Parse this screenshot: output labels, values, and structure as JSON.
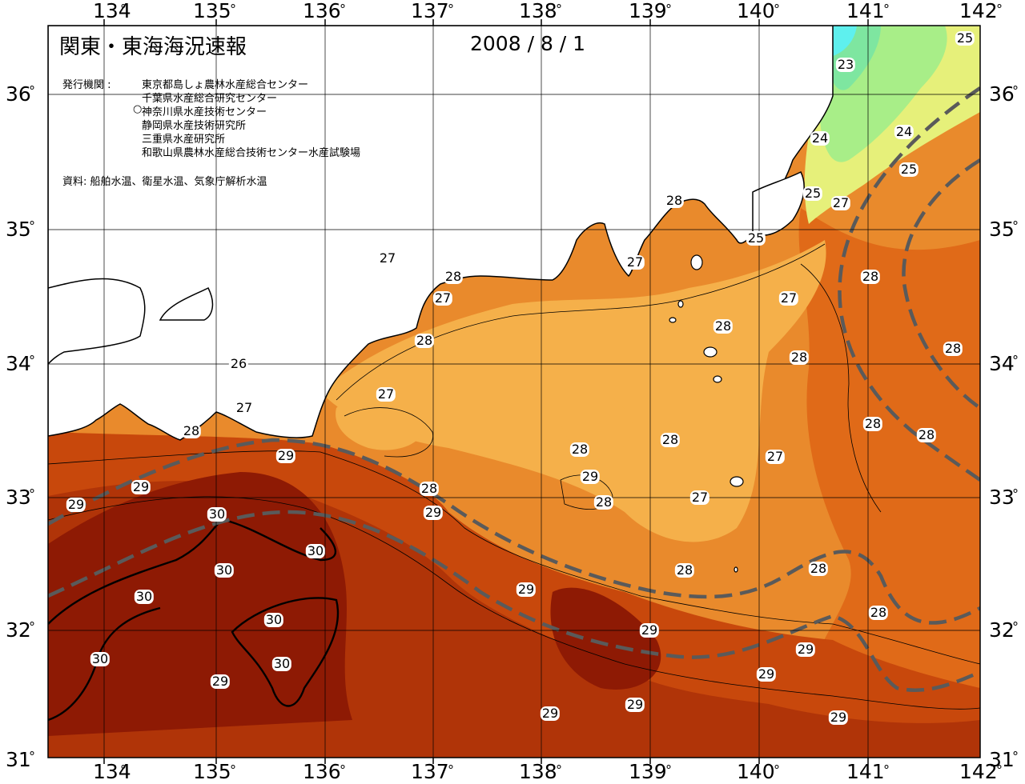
{
  "header": {
    "title": "関東・東海海況速報",
    "date": "2008 / 8 / 1"
  },
  "issuers": {
    "label": "発行機関 :",
    "orgs": [
      "東京都島しょ農林水産総合センター",
      "千葉県水産総合研究センター",
      "神奈川県水産技術センター",
      "静岡県水産技術研究所",
      "三重県水産研究所",
      "和歌山県農林水産総合技術センター水産試験場"
    ]
  },
  "source": "資料: 船舶水温、衛星水温、気象庁解析水温",
  "axes": {
    "lon_labels": [
      "134",
      "135",
      "136",
      "137",
      "138",
      "139",
      "140",
      "141",
      "142"
    ],
    "lat_labels": [
      "36",
      "35",
      "34",
      "33",
      "32",
      "31"
    ],
    "degree_mark": "°"
  },
  "contour_labels": [
    {
      "text": "25"
    },
    {
      "text": "23"
    },
    {
      "text": "24"
    },
    {
      "text": "24"
    },
    {
      "text": "25"
    },
    {
      "text": "25"
    },
    {
      "text": "27"
    },
    {
      "text": "28"
    },
    {
      "text": "25"
    },
    {
      "text": "27"
    },
    {
      "text": "28"
    },
    {
      "text": "27"
    },
    {
      "text": "27"
    },
    {
      "text": "28"
    },
    {
      "text": "28"
    },
    {
      "text": "27"
    },
    {
      "text": "28"
    },
    {
      "text": "28"
    },
    {
      "text": "28"
    },
    {
      "text": "26"
    },
    {
      "text": "27"
    },
    {
      "text": "28"
    },
    {
      "text": "27"
    },
    {
      "text": "28"
    },
    {
      "text": "28"
    },
    {
      "text": "29"
    },
    {
      "text": "28"
    },
    {
      "text": "27"
    },
    {
      "text": "28"
    },
    {
      "text": "29"
    },
    {
      "text": "28"
    },
    {
      "text": "27"
    },
    {
      "text": "29"
    },
    {
      "text": "29"
    },
    {
      "text": "28"
    },
    {
      "text": "30"
    },
    {
      "text": "30"
    },
    {
      "text": "30"
    },
    {
      "text": "30"
    },
    {
      "text": "30"
    },
    {
      "text": "30"
    },
    {
      "text": "30"
    },
    {
      "text": "28"
    },
    {
      "text": "28"
    },
    {
      "text": "29"
    },
    {
      "text": "28"
    },
    {
      "text": "29"
    },
    {
      "text": "29"
    },
    {
      "text": "29"
    },
    {
      "text": "29"
    },
    {
      "text": "29"
    },
    {
      "text": "29"
    },
    {
      "text": "29"
    },
    {
      "text": "29"
    }
  ],
  "colors": {
    "t23": "#7ee6a0",
    "t24": "#a8ee88",
    "t25": "#e6f07a",
    "t26": "#f6dc6a",
    "t27": "#f5b04a",
    "t28": "#e98a2c",
    "t285": "#e06a18",
    "t29": "#c8480c",
    "t295": "#b03408",
    "t30": "#8e1a04",
    "cyan": "#5ef0ee",
    "land": "#ffffff"
  }
}
